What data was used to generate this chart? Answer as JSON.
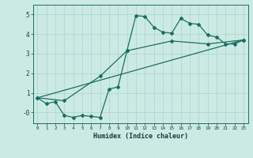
{
  "xlabel": "Humidex (Indice chaleur)",
  "xlim": [
    -0.5,
    23.5
  ],
  "ylim": [
    -0.55,
    5.5
  ],
  "ytick_values": [
    0,
    1,
    2,
    3,
    4,
    5
  ],
  "ytick_labels": [
    "-0",
    "1",
    "2",
    "3",
    "4",
    "5"
  ],
  "background_color": "#cceae4",
  "grid_color": "#aad4ce",
  "line_color": "#1a6e64",
  "line_width": 0.9,
  "marker": "D",
  "marker_size": 2.0,
  "line1_x": [
    0,
    1,
    2,
    3,
    4,
    5,
    6,
    7,
    8,
    9,
    10,
    11,
    12,
    13,
    14,
    15,
    16,
    17,
    18,
    19,
    20,
    21,
    22,
    23
  ],
  "line1_y": [
    0.75,
    0.45,
    0.55,
    -0.15,
    -0.25,
    -0.15,
    -0.2,
    -0.25,
    1.2,
    1.3,
    3.15,
    4.95,
    4.9,
    4.35,
    4.1,
    4.05,
    4.8,
    4.55,
    4.5,
    3.95,
    3.85,
    3.5,
    3.5,
    3.7
  ],
  "line2_x": [
    0,
    3,
    7,
    10,
    15,
    19,
    23
  ],
  "line2_y": [
    0.75,
    0.6,
    1.85,
    3.15,
    3.65,
    3.5,
    3.7
  ],
  "line3_x": [
    0,
    23
  ],
  "line3_y": [
    0.75,
    3.7
  ]
}
